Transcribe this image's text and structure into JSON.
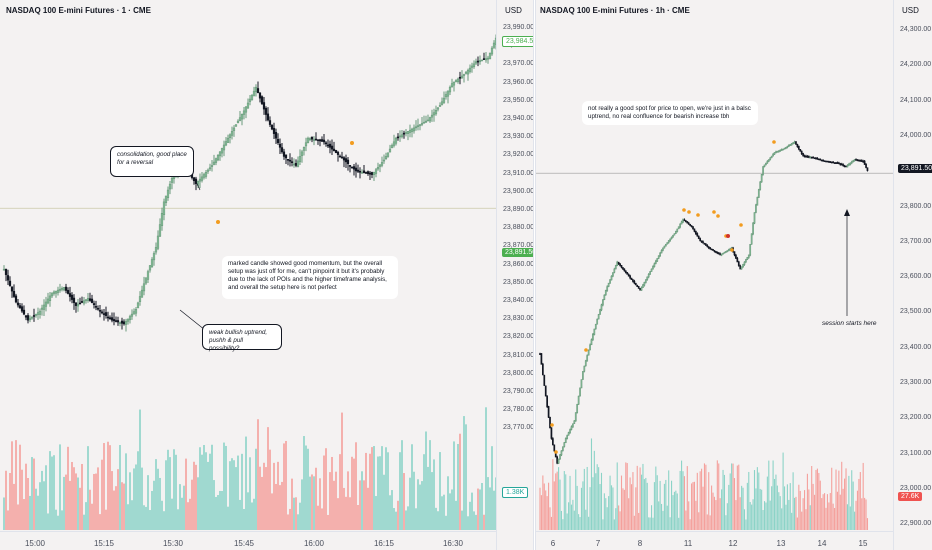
{
  "left_panel": {
    "title": "NASDAQ 100 E-mini Futures · 1 · CME",
    "unit": "USD",
    "price_ticks": [
      "23,990.00",
      "23,980.00",
      "23,970.00",
      "23,960.00",
      "23,950.00",
      "23,940.00",
      "23,930.00",
      "23,920.00",
      "23,910.00",
      "23,900.00",
      "23,890.00",
      "23,880.00",
      "23,870.00",
      "23,860.00",
      "23,850.00",
      "23,840.00",
      "23,830.00",
      "23,820.00",
      "23,810.00",
      "23,800.00",
      "23,790.00",
      "23,780.00",
      "23,770.00"
    ],
    "current_price_badge": "23,984.50",
    "level_badge": "23,891.50",
    "volume_badge": "1.38K",
    "time_labels": [
      "15:00",
      "15:15",
      "15:30",
      "15:45",
      "16:00",
      "16:15",
      "16:30"
    ],
    "notes": {
      "consolidation": "consolidation, good place for a reversal",
      "marked_candle": "marked candle showed good momentum, but the overall setup was just off for me, can't pinpoint it but it's probably due to the lack of POIs and the higher timeframe analysis, and overall the setup here is not perfect",
      "weak_bullish": "weak bullish uptrend, pushh & pull possibility?"
    }
  },
  "right_panel": {
    "title": "NASDAQ 100 E-mini Futures · 1h · CME",
    "unit": "USD",
    "price_ticks": [
      "24,300.00",
      "24,200.00",
      "24,100.00",
      "24,000.00",
      "23,900.00",
      "23,800.00",
      "23,700.00",
      "23,600.00",
      "23,500.00",
      "23,400.00",
      "23,300.00",
      "23,200.00",
      "23,100.00",
      "23,000.00",
      "22,900.00"
    ],
    "level_badge": "23,891.50",
    "volume_badge": "27.6K",
    "time_labels": [
      "6",
      "7",
      "8",
      "11",
      "12",
      "13",
      "14",
      "15"
    ],
    "notes": {
      "open_spot": "not really a good spot for price to open, we're just in a balsc uptrend, no real confluence for bearish increase tbh",
      "session": "session starts here"
    }
  },
  "colors": {
    "bull": "#6a9a7c",
    "bull_fill": "#8fc7a0",
    "bear": "#131722",
    "volume_up": "#8cd3c7",
    "volume_down": "#f4a09c",
    "level_badge_left": "#4caf50",
    "level_badge_right": "#131722",
    "volume_badge_right": "#ef5350",
    "marker": "#f29c1f",
    "marker_red": "#d0342c"
  }
}
